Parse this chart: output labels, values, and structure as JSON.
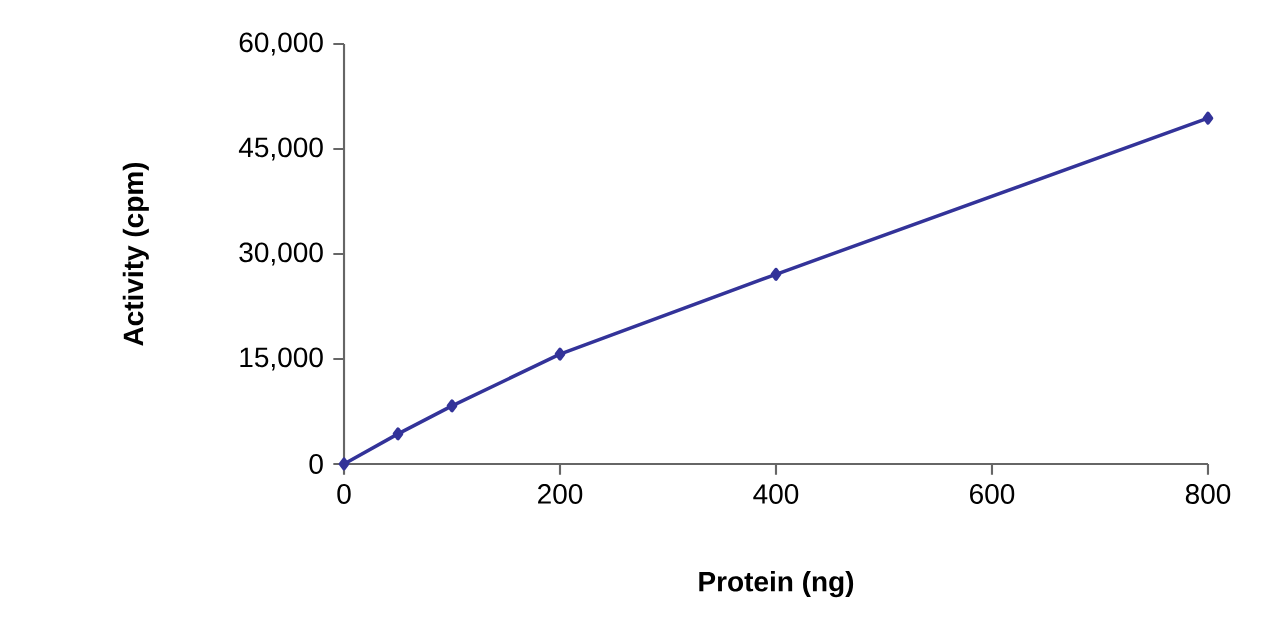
{
  "chart_data": {
    "type": "line",
    "xlabel": "Protein (ng)",
    "ylabel": "Activity (cpm)",
    "x": [
      0,
      50,
      100,
      200,
      400,
      800
    ],
    "series": [
      {
        "color": "#333399",
        "values": [
          0,
          4300,
          8300,
          15700,
          27100,
          49400
        ]
      }
    ],
    "xlim": [
      0,
      800
    ],
    "ylim": [
      0,
      60000
    ],
    "xticks": [
      0,
      200,
      400,
      600,
      800
    ],
    "yticks": [
      0,
      {
        "value": 15000,
        "label": "15,000"
      },
      {
        "value": 30000,
        "label": "30,000"
      },
      {
        "value": 45000,
        "label": "45,000"
      },
      {
        "value": 60000,
        "label": "60,000"
      }
    ],
    "grid": false,
    "marker": "diamond",
    "line_style": "solid"
  }
}
